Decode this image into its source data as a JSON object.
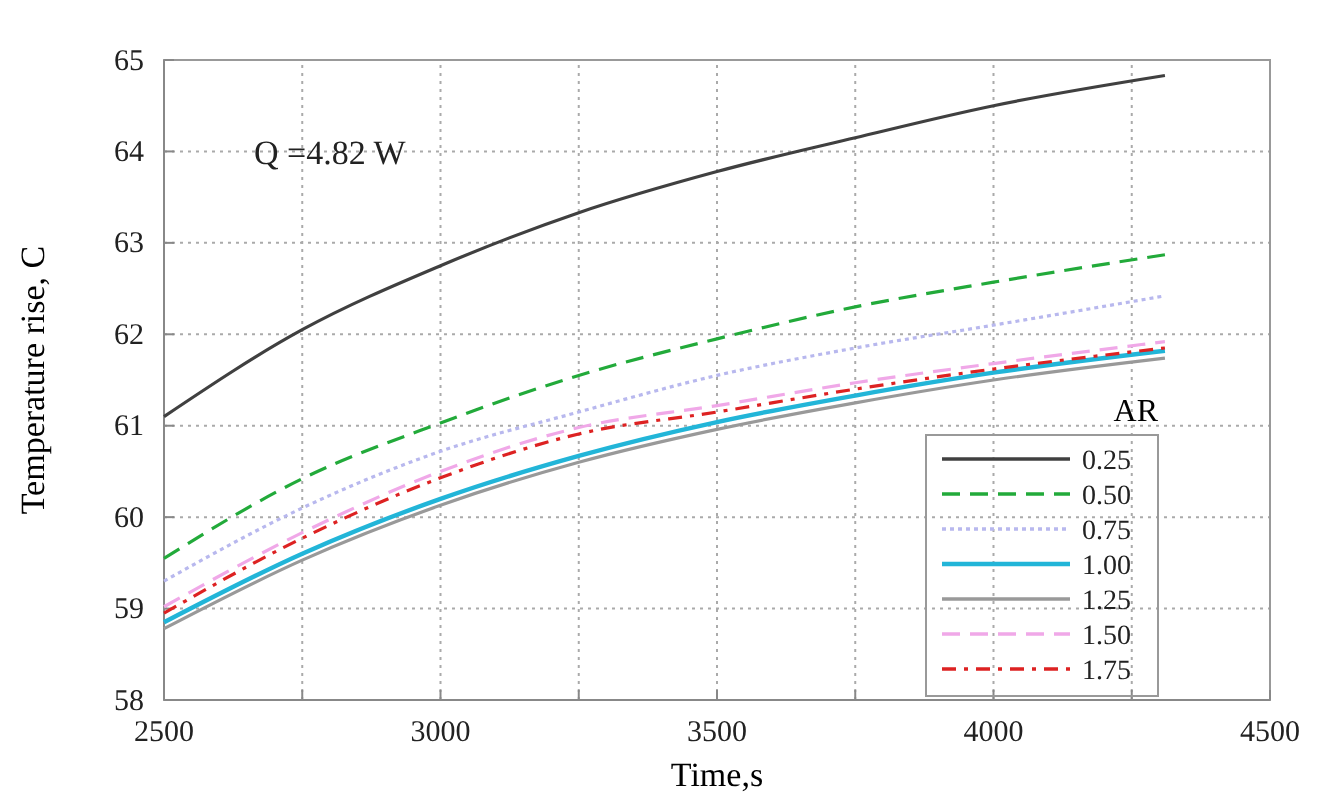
{
  "chart_data": {
    "type": "line",
    "xlabel": "Time,s",
    "ylabel": "Temperature rise, C",
    "legend_title": "AR",
    "annotations": [
      "Q =4.82 W"
    ],
    "x": [
      2500,
      2750,
      3000,
      3250,
      3500,
      3750,
      4000,
      4310
    ],
    "series": [
      {
        "name": "0.25",
        "color": "#404040",
        "line_style": "solid",
        "values": [
          61.1,
          62.05,
          62.75,
          63.33,
          63.78,
          64.15,
          64.5,
          64.83
        ]
      },
      {
        "name": "0.50",
        "color": "#22aa3a",
        "line_style": "dashed",
        "values": [
          59.55,
          60.42,
          61.03,
          61.55,
          61.95,
          62.3,
          62.57,
          62.87
        ]
      },
      {
        "name": "0.75",
        "color": "#b8b8ee",
        "line_style": "dotted",
        "values": [
          59.3,
          60.1,
          60.72,
          61.15,
          61.55,
          61.85,
          62.1,
          62.42
        ]
      },
      {
        "name": "1.00",
        "color": "#22b5d8",
        "line_style": "solid",
        "values": [
          58.85,
          59.6,
          60.2,
          60.67,
          61.04,
          61.33,
          61.58,
          61.82
        ]
      },
      {
        "name": "1.25",
        "color": "#999999",
        "line_style": "solid",
        "values": [
          58.78,
          59.53,
          60.13,
          60.6,
          60.96,
          61.25,
          61.5,
          61.74
        ]
      },
      {
        "name": "1.50",
        "color": "#f0a8e8",
        "line_style": "dashed",
        "values": [
          59.02,
          59.83,
          60.5,
          60.98,
          61.22,
          61.47,
          61.68,
          61.92
        ]
      },
      {
        "name": "1.75",
        "color": "#dd2222",
        "line_style": "dashdot",
        "values": [
          58.95,
          59.77,
          60.43,
          60.91,
          61.15,
          61.4,
          61.62,
          61.85
        ]
      }
    ],
    "xlim": [
      2500,
      4500
    ],
    "xticks": [
      2500,
      {
        "value": 2750,
        "label": null
      },
      3000,
      {
        "value": 3250,
        "label": null
      },
      3500,
      {
        "value": 3750,
        "label": null
      },
      4000,
      {
        "value": 4250,
        "label": null
      },
      4500
    ],
    "ylim": [
      58,
      65
    ],
    "yticks": [
      58,
      59,
      60,
      61,
      62,
      63,
      64,
      65
    ],
    "grid": true,
    "legend": "bottom right",
    "marker": "none"
  }
}
